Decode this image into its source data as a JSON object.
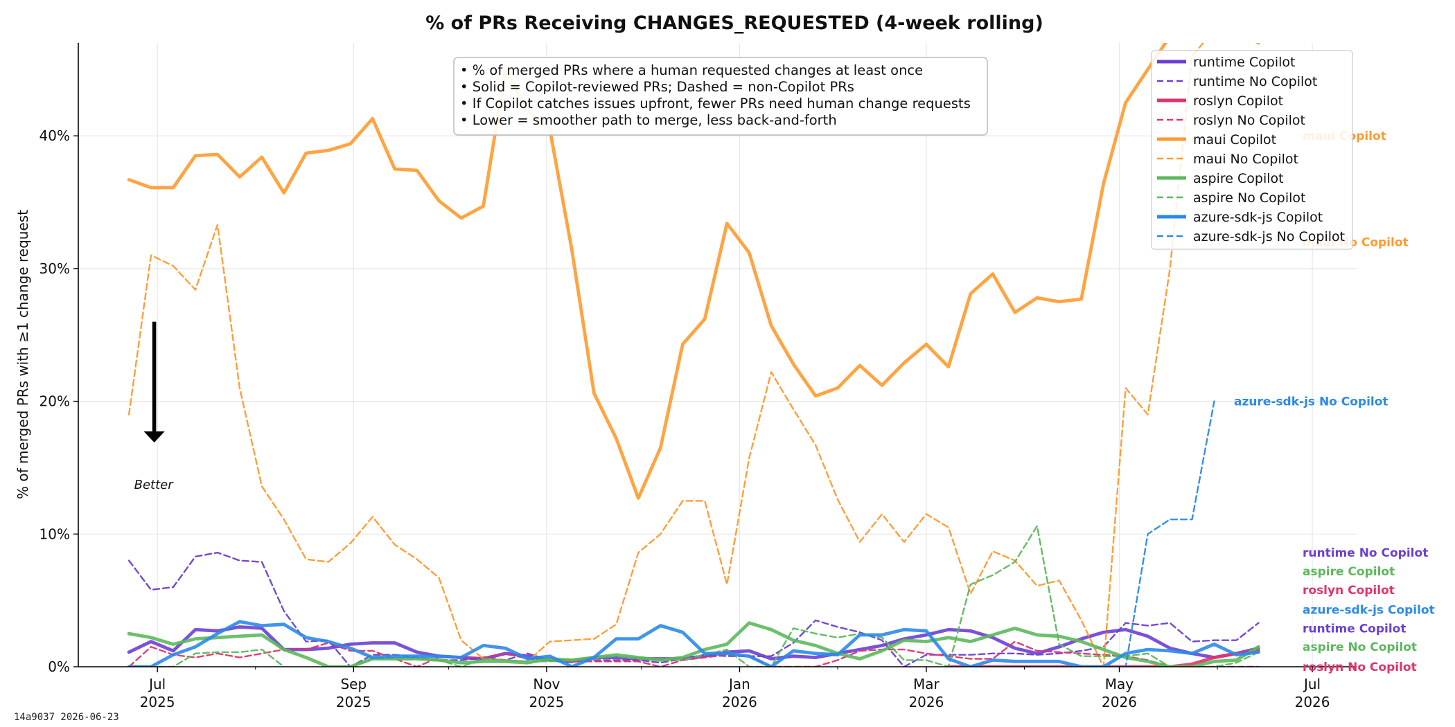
{
  "chart_data": {
    "type": "line",
    "title": "% of PRs Receiving CHANGES_REQUESTED (4-week rolling)",
    "ylabel": "% of merged PRs with ≥1 change request",
    "xlabel": "",
    "ylim": [
      0,
      47
    ],
    "y_ticks": [
      0,
      10,
      20,
      30,
      40
    ],
    "y_tick_labels": [
      "0%",
      "10%",
      "20%",
      "30%",
      "40%"
    ],
    "xlim": [
      "2025-06-06",
      "2026-07-15"
    ],
    "x_ticks": [
      "2025-07-01",
      "2025-09-01",
      "2025-11-01",
      "2026-01-01",
      "2026-03-01",
      "2026-05-01",
      "2026-07-01"
    ],
    "x_tick_labels": [
      [
        "Jul",
        "2025"
      ],
      [
        "Sep",
        "2025"
      ],
      [
        "Nov",
        "2025"
      ],
      [
        "Jan",
        "2026"
      ],
      [
        "Mar",
        "2026"
      ],
      [
        "May",
        "2026"
      ],
      [
        "Jul",
        "2026"
      ]
    ],
    "x_minor_ticks": [
      "2025-08-01",
      "2025-10-01",
      "2025-12-01",
      "2026-02-01",
      "2026-04-01",
      "2026-06-01"
    ],
    "grid": true,
    "legend_position": "top-right",
    "annotation_box": [
      "• % of merged PRs where a human requested changes at least once",
      "• Solid = Copilot-reviewed PRs; Dashed = non-Copilot PRs",
      "• If Copilot catches issues upfront, fewer PRs need human change requests",
      "• Lower = smoother path to merge, less back-and-forth"
    ],
    "arrow_label": "Better",
    "arrow_from": 26,
    "arrow_to": 17,
    "arrow_date": "2025-06-30",
    "x": [
      "2025-06-22",
      "2025-06-29",
      "2025-07-06",
      "2025-07-13",
      "2025-07-20",
      "2025-07-27",
      "2025-08-03",
      "2025-08-10",
      "2025-08-17",
      "2025-08-24",
      "2025-08-31",
      "2025-09-07",
      "2025-09-14",
      "2025-09-21",
      "2025-09-28",
      "2025-10-05",
      "2025-10-12",
      "2025-10-19",
      "2025-10-26",
      "2025-11-02",
      "2025-11-09",
      "2025-11-16",
      "2025-11-23",
      "2025-11-30",
      "2025-12-07",
      "2025-12-14",
      "2025-12-21",
      "2025-12-28",
      "2026-01-04",
      "2026-01-11",
      "2026-01-18",
      "2026-01-25",
      "2026-02-01",
      "2026-02-08",
      "2026-02-15",
      "2026-02-22",
      "2026-03-01",
      "2026-03-08",
      "2026-03-15",
      "2026-03-22",
      "2026-03-29",
      "2026-04-05",
      "2026-04-12",
      "2026-04-19",
      "2026-04-26",
      "2026-05-03",
      "2026-05-10",
      "2026-05-17",
      "2026-05-24",
      "2026-05-31",
      "2026-06-07",
      "2026-06-14"
    ],
    "series": [
      {
        "name": "runtime Copilot",
        "color": "#6b3fd4",
        "dash": false,
        "values": [
          1.1,
          1.9,
          1.2,
          2.8,
          2.7,
          3.0,
          2.9,
          1.3,
          1.3,
          1.4,
          1.7,
          1.8,
          1.8,
          1.1,
          0.8,
          0.7,
          0.6,
          1.0,
          0.8,
          0.5,
          0.4,
          0.7,
          0.7,
          0.6,
          0.6,
          0.6,
          0.8,
          1.1,
          1.2,
          0.6,
          0.8,
          0.7,
          1.0,
          1.3,
          1.6,
          2.1,
          2.4,
          2.8,
          2.7,
          2.2,
          1.4,
          1.0,
          1.5,
          2.1,
          2.6,
          2.8,
          2.3,
          1.4,
          1.0,
          0.7,
          1.0,
          1.4
        ]
      },
      {
        "name": "runtime No Copilot",
        "color": "#6b3fd4",
        "dash": true,
        "values": [
          8.0,
          5.8,
          6.0,
          8.3,
          8.6,
          8.0,
          7.9,
          4.2,
          1.9,
          2.0,
          0.0,
          0.9,
          0.9,
          0.7,
          0.5,
          0.5,
          0.7,
          0.5,
          1.0,
          0.5,
          0.5,
          0.5,
          0.5,
          0.5,
          0.3,
          0.6,
          0.9,
          0.8,
          0.8,
          0.8,
          1.8,
          3.5,
          3.0,
          2.6,
          2.0,
          0.0,
          0.9,
          0.9,
          0.9,
          1.0,
          1.0,
          0.9,
          1.0,
          1.2,
          1.5,
          3.3,
          3.1,
          3.3,
          1.9,
          2.0,
          2.0,
          3.3
        ]
      },
      {
        "name": "roslyn Copilot",
        "color": "#e0336b",
        "dash": false,
        "values": [
          null,
          null,
          null,
          null,
          null,
          null,
          null,
          null,
          null,
          null,
          null,
          null,
          null,
          null,
          null,
          null,
          null,
          null,
          null,
          null,
          null,
          null,
          null,
          null,
          null,
          null,
          null,
          null,
          null,
          null,
          null,
          null,
          null,
          null,
          null,
          null,
          null,
          0.0,
          0.0,
          0.0,
          0.0,
          0.0,
          0.0,
          0.0,
          0.0,
          0.0,
          0.0,
          0.0,
          0.2,
          0.7,
          1.0,
          1.2
        ]
      },
      {
        "name": "roslyn No Copilot",
        "color": "#e0336b",
        "dash": true,
        "values": [
          0.0,
          1.5,
          0.9,
          0.7,
          1.0,
          0.7,
          1.0,
          1.3,
          1.3,
          1.8,
          1.2,
          1.2,
          0.6,
          0.0,
          0.7,
          0.7,
          0.7,
          1.0,
          0.6,
          0.5,
          0.4,
          0.4,
          0.4,
          0.4,
          0.0,
          0.5,
          0.7,
          0.9,
          0.8,
          0.0,
          0.0,
          0.0,
          0.5,
          1.2,
          1.3,
          1.3,
          1.0,
          0.8,
          0.6,
          0.6,
          1.9,
          1.2,
          1.1,
          1.0,
          0.9,
          0.8,
          0.5,
          0.0,
          0.0,
          0.0,
          0.0,
          0.0
        ]
      },
      {
        "name": "maui Copilot",
        "color": "#ff9a2e",
        "dash": false,
        "values": [
          36.7,
          36.1,
          36.1,
          38.5,
          38.6,
          36.9,
          38.4,
          35.7,
          38.7,
          38.9,
          39.4,
          41.3,
          37.5,
          37.4,
          35.1,
          33.8,
          34.7,
          45.0,
          41.9,
          40.5,
          31.4,
          20.6,
          17.2,
          12.7,
          16.5,
          24.3,
          26.2,
          33.4,
          31.2,
          25.7,
          22.8,
          20.4,
          21.0,
          22.7,
          21.2,
          22.9,
          24.3,
          22.6,
          28.1,
          29.6,
          26.7,
          27.8,
          27.5,
          27.7,
          36.4,
          42.5,
          45.0,
          47.5,
          47.5,
          48.5,
          48.0,
          47.0
        ]
      },
      {
        "name": "maui No Copilot",
        "color": "#ff9a2e",
        "dash": true,
        "values": [
          19.0,
          31.0,
          30.2,
          28.4,
          33.3,
          21.0,
          13.6,
          11.1,
          8.1,
          7.9,
          9.3,
          11.3,
          9.2,
          8.1,
          6.7,
          2.0,
          0.6,
          0.5,
          0.4,
          1.9,
          2.0,
          2.1,
          3.2,
          8.6,
          10.0,
          12.5,
          12.5,
          6.2,
          15.7,
          22.2,
          19.4,
          16.7,
          12.6,
          9.4,
          11.5,
          9.4,
          11.5,
          10.5,
          5.5,
          8.7,
          8.0,
          6.1,
          6.5,
          3.5,
          0.0,
          21.0,
          19.0,
          30.0,
          46.0,
          48.0,
          47.5,
          47.9
        ]
      },
      {
        "name": "aspire Copilot",
        "color": "#5cb85c",
        "dash": false,
        "values": [
          2.5,
          2.2,
          1.7,
          2.1,
          2.2,
          2.3,
          2.4,
          1.3,
          0.7,
          0.0,
          0.0,
          0.6,
          0.6,
          0.6,
          0.5,
          0.3,
          0.4,
          0.4,
          0.3,
          0.6,
          0.5,
          0.7,
          0.9,
          0.7,
          0.5,
          0.7,
          1.3,
          1.7,
          3.3,
          2.8,
          2.0,
          1.6,
          1.0,
          0.6,
          1.2,
          2.0,
          1.9,
          2.2,
          1.9,
          2.4,
          2.9,
          2.4,
          2.3,
          1.9,
          1.3,
          0.7,
          0.4,
          0.0,
          0.0,
          0.4,
          0.5,
          1.5
        ]
      },
      {
        "name": "aspire No Copilot",
        "color": "#5cb85c",
        "dash": true,
        "values": [
          0.0,
          0.0,
          0.0,
          1.0,
          1.1,
          1.1,
          1.3,
          0.0,
          null,
          null,
          0.0,
          0.6,
          0.6,
          0.6,
          0.5,
          0.0,
          0.6,
          0.5,
          0.4,
          0.4,
          0.5,
          0.7,
          0.8,
          0.6,
          0.6,
          0.5,
          0.9,
          1.3,
          0.0,
          0.0,
          2.9,
          2.5,
          2.2,
          2.5,
          2.2,
          0.5,
          0.5,
          0.0,
          6.2,
          6.9,
          7.9,
          10.6,
          1.7,
          0.8,
          0.8,
          0.8,
          1.0,
          0.0,
          0.0,
          0.0,
          0.3,
          1.1
        ]
      },
      {
        "name": "azure-sdk-js Copilot",
        "color": "#2b8ae8",
        "dash": false,
        "values": [
          0.0,
          0.0,
          0.9,
          1.5,
          2.5,
          3.4,
          3.1,
          3.2,
          2.2,
          1.9,
          1.4,
          0.7,
          0.8,
          0.8,
          0.8,
          0.7,
          1.6,
          1.4,
          0.6,
          0.8,
          0.0,
          0.7,
          2.1,
          2.1,
          3.1,
          2.6,
          1.0,
          1.0,
          0.8,
          0.0,
          1.2,
          1.0,
          0.9,
          2.4,
          2.4,
          2.8,
          2.7,
          0.6,
          0.0,
          0.5,
          0.4,
          0.4,
          0.4,
          0.0,
          0.0,
          1.0,
          1.3,
          1.2,
          1.0,
          1.7,
          0.9,
          1.1
        ]
      },
      {
        "name": "azure-sdk-js No Copilot",
        "color": "#2b8ae8",
        "dash": true,
        "values": [
          null,
          null,
          null,
          null,
          null,
          null,
          null,
          null,
          null,
          null,
          null,
          null,
          null,
          null,
          null,
          null,
          null,
          null,
          null,
          null,
          null,
          null,
          null,
          null,
          null,
          null,
          null,
          null,
          null,
          null,
          null,
          null,
          null,
          null,
          null,
          null,
          null,
          null,
          null,
          null,
          null,
          null,
          null,
          null,
          0.0,
          0.0,
          10.0,
          11.1,
          11.1,
          20.0,
          null,
          null
        ]
      }
    ],
    "right_labels": [
      {
        "text": "maui Copilot",
        "series": "maui Copilot",
        "y": 40.0
      },
      {
        "text": "maui No Copilot",
        "series": "maui No Copilot",
        "y": 32.0
      },
      {
        "text": "azure-sdk-js No Copilot",
        "series": "azure-sdk-js No Copilot",
        "y": 20.0
      },
      {
        "text": "runtime No Copilot",
        "series": "runtime No Copilot",
        "y": 8.6
      },
      {
        "text": "aspire Copilot",
        "series": "aspire Copilot",
        "y": 7.2
      },
      {
        "text": "roslyn Copilot",
        "series": "roslyn Copilot",
        "y": 5.8
      },
      {
        "text": "azure-sdk-js Copilot",
        "series": "azure-sdk-js Copilot",
        "y": 4.3
      },
      {
        "text": "runtime Copilot",
        "series": "runtime Copilot",
        "y": 2.9
      },
      {
        "text": "aspire No Copilot",
        "series": "aspire No Copilot",
        "y": 1.5
      },
      {
        "text": "roslyn No Copilot",
        "series": "roslyn No Copilot",
        "y": 0.0
      }
    ]
  },
  "footer": {
    "stamp": "14a9037  2026-06-23"
  }
}
